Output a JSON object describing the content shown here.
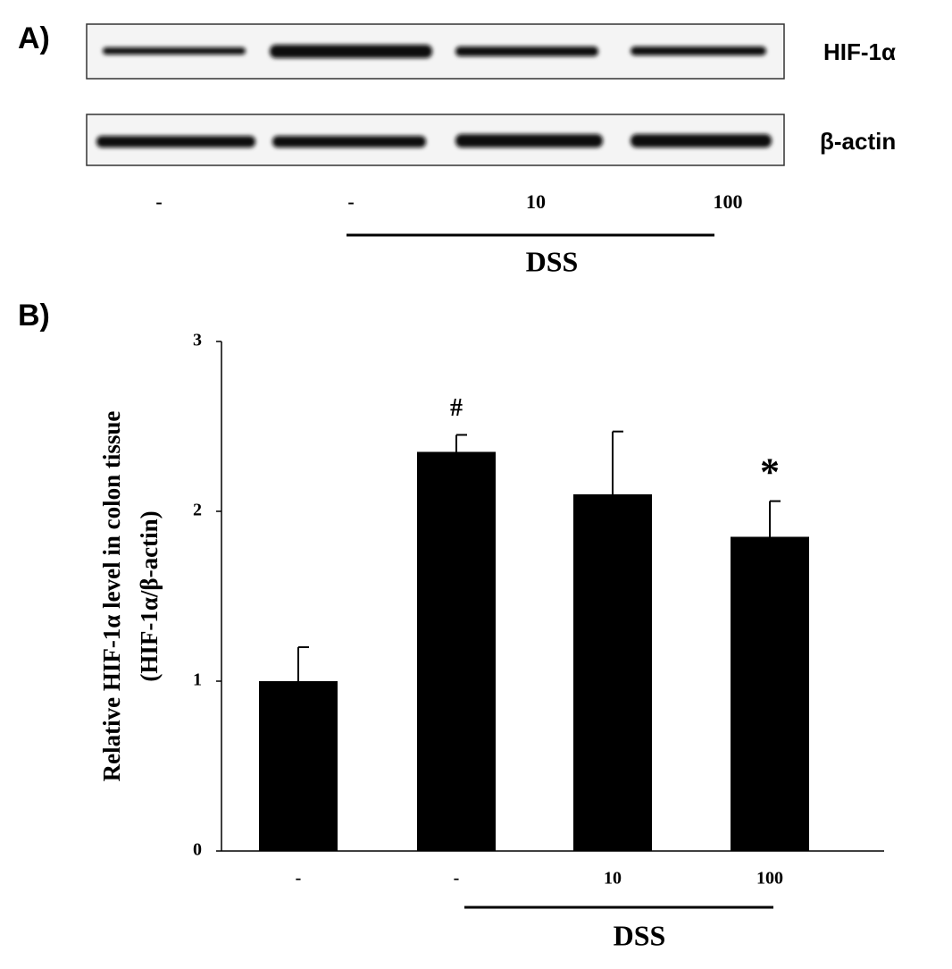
{
  "panel_a": {
    "label": "A)",
    "blots": [
      "HIF-1α",
      "β-actin"
    ],
    "lanes": [
      "-",
      "-",
      "10",
      "100"
    ],
    "group": "DSS"
  },
  "panel_b": {
    "label": "B)"
  },
  "chart_data": {
    "type": "bar",
    "ylabel": [
      "Relative HIF-1α level in colon tissue",
      "(HIF-1α/β-actin)"
    ],
    "categories": [
      "-",
      "-",
      "10",
      "100"
    ],
    "values": [
      1.0,
      2.35,
      2.1,
      1.85
    ],
    "errors": [
      0.2,
      0.1,
      0.37,
      0.21
    ],
    "annotations": [
      null,
      "#",
      null,
      "*"
    ],
    "group": "DSS",
    "color": "#000000",
    "ylim": [
      0,
      3
    ],
    "yticks": [
      0,
      1,
      2,
      3
    ],
    "grid": false
  }
}
